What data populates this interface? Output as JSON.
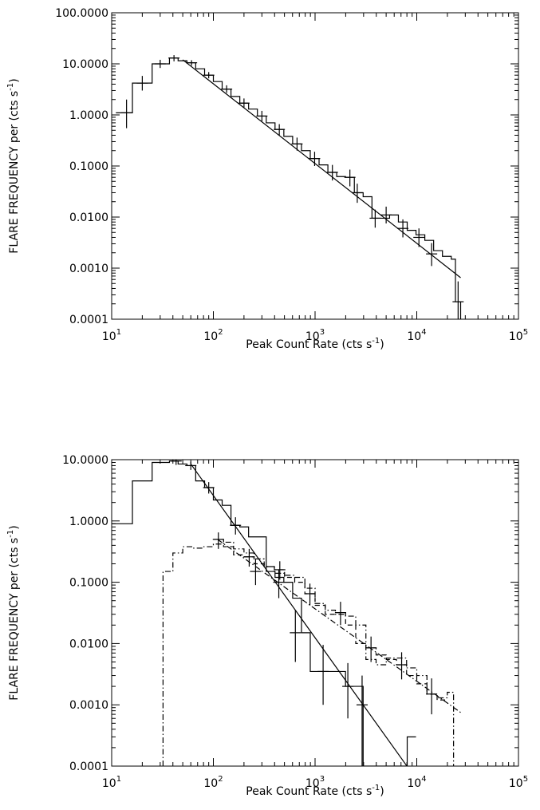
{
  "chart_data": [
    {
      "type": "line",
      "xlabel": "Peak Count Rate (cts s",
      "xlabel_exp": "-1",
      "xlabel_close": ")",
      "ylabel": "FLARE FREQUENCY per (cts s",
      "ylabel_exp": "-1",
      "ylabel_close": ")",
      "xscale": "log",
      "yscale": "log",
      "xlim": [
        10,
        100000
      ],
      "ylim": [
        0.0001,
        100
      ],
      "xticks": [
        {
          "base": "10",
          "exp": "1",
          "value": 10
        },
        {
          "base": "10",
          "exp": "2",
          "value": 100
        },
        {
          "base": "10",
          "exp": "3",
          "value": 1000
        },
        {
          "base": "10",
          "exp": "4",
          "value": 10000
        },
        {
          "base": "10",
          "exp": "5",
          "value": 100000
        }
      ],
      "yticks": [
        {
          "label": "0.0001",
          "value": 0.0001
        },
        {
          "label": "0.0010",
          "value": 0.001
        },
        {
          "label": "0.0100",
          "value": 0.01
        },
        {
          "label": "0.1000",
          "value": 0.1
        },
        {
          "label": "1.0000",
          "value": 1
        },
        {
          "label": "10.0000",
          "value": 10
        },
        {
          "label": "100.0000",
          "value": 100
        }
      ],
      "series": [
        {
          "style": "solid",
          "kind": "histogram",
          "edges": [
            11,
            13,
            16,
            20,
            25,
            30,
            37,
            45,
            55,
            67,
            82,
            100,
            122,
            149,
            182,
            222,
            271,
            331,
            404,
            493,
            602,
            735,
            897,
            1095,
            1337,
            1632,
            1993,
            2433,
            2970,
            3626,
            4426,
            5404,
            6597,
            8053,
            9831,
            12002,
            14652,
            17888,
            21837,
            24000,
            27000
          ],
          "values": [
            1.1,
            1.1,
            4.2,
            4.2,
            10.0,
            10.0,
            13.0,
            11.5,
            10.5,
            8.0,
            6.0,
            4.5,
            3.2,
            2.3,
            1.7,
            1.3,
            0.95,
            0.7,
            0.52,
            0.38,
            0.27,
            0.2,
            0.14,
            0.105,
            0.075,
            0.062,
            0.06,
            0.03,
            0.025,
            0.0095,
            0.0095,
            0.011,
            0.008,
            0.0055,
            0.0045,
            0.0035,
            0.0022,
            0.0017,
            0.0015,
            0.00022
          ],
          "errors": [
            {
              "x": 14,
              "y": 1.1,
              "lo": 0.55,
              "hi": 2.0
            },
            {
              "x": 20,
              "y": 4.2,
              "lo": 3.0,
              "hi": 5.8
            },
            {
              "x": 30,
              "y": 10.0,
              "lo": 8.3,
              "hi": 12.0
            },
            {
              "x": 41,
              "y": 13.0,
              "lo": 11.2,
              "hi": 14.8
            },
            {
              "x": 61,
              "y": 10.5,
              "lo": 9.2,
              "hi": 11.8
            },
            {
              "x": 90,
              "y": 6.0,
              "lo": 5.2,
              "hi": 6.9
            },
            {
              "x": 135,
              "y": 3.2,
              "lo": 2.7,
              "hi": 3.8
            },
            {
              "x": 200,
              "y": 1.7,
              "lo": 1.4,
              "hi": 2.1
            },
            {
              "x": 300,
              "y": 0.95,
              "lo": 0.75,
              "hi": 1.2
            },
            {
              "x": 445,
              "y": 0.52,
              "lo": 0.4,
              "hi": 0.66
            },
            {
              "x": 665,
              "y": 0.27,
              "lo": 0.2,
              "hi": 0.36
            },
            {
              "x": 990,
              "y": 0.14,
              "lo": 0.1,
              "hi": 0.19
            },
            {
              "x": 1480,
              "y": 0.075,
              "lo": 0.052,
              "hi": 0.105
            },
            {
              "x": 2200,
              "y": 0.06,
              "lo": 0.04,
              "hi": 0.085
            },
            {
              "x": 2600,
              "y": 0.03,
              "lo": 0.019,
              "hi": 0.045
            },
            {
              "x": 3900,
              "y": 0.0095,
              "lo": 0.0062,
              "hi": 0.014
            },
            {
              "x": 5000,
              "y": 0.011,
              "lo": 0.0075,
              "hi": 0.016
            },
            {
              "x": 7300,
              "y": 0.006,
              "lo": 0.004,
              "hi": 0.009
            },
            {
              "x": 10500,
              "y": 0.004,
              "lo": 0.0026,
              "hi": 0.006
            },
            {
              "x": 14000,
              "y": 0.0019,
              "lo": 0.0011,
              "hi": 0.0031
            },
            {
              "x": 25500,
              "y": 0.00022,
              "lo": 0.0001,
              "hi": 0.00055
            }
          ]
        },
        {
          "style": "solid",
          "kind": "fit-line",
          "x": [
            50,
            27000
          ],
          "y": [
            12.0,
            0.00065
          ]
        }
      ]
    },
    {
      "type": "line",
      "xlabel": "Peak Count Rate (cts s",
      "xlabel_exp": "-1",
      "xlabel_close": ")",
      "ylabel": "FLARE FREQUENCY per (cts s",
      "ylabel_exp": "-1",
      "ylabel_close": ")",
      "xscale": "log",
      "yscale": "log",
      "xlim": [
        10,
        100000
      ],
      "ylim": [
        0.0001,
        10
      ],
      "xticks": [
        {
          "base": "10",
          "exp": "1",
          "value": 10
        },
        {
          "base": "10",
          "exp": "2",
          "value": 100
        },
        {
          "base": "10",
          "exp": "3",
          "value": 1000
        },
        {
          "base": "10",
          "exp": "4",
          "value": 10000
        },
        {
          "base": "10",
          "exp": "5",
          "value": 100000
        }
      ],
      "yticks": [
        {
          "label": "0.0001",
          "value": 0.0001
        },
        {
          "label": "0.0010",
          "value": 0.001
        },
        {
          "label": "0.0100",
          "value": 0.01
        },
        {
          "label": "0.1000",
          "value": 0.1
        },
        {
          "label": "1.0000",
          "value": 1
        },
        {
          "label": "10.0000",
          "value": 10
        }
      ],
      "series": [
        {
          "style": "solid",
          "kind": "histogram",
          "edges": [
            10,
            13,
            16,
            20,
            25,
            30,
            37,
            45,
            55,
            67,
            82,
            100,
            122,
            149,
            182,
            222,
            271,
            331,
            404,
            493,
            602,
            735,
            897,
            1095,
            1337,
            1632,
            1993,
            2433,
            2970,
            3626,
            4426,
            5404,
            6597,
            8053,
            9831
          ],
          "values": [
            0.9,
            0.9,
            4.5,
            4.5,
            9.0,
            9.0,
            9.5,
            8.5,
            8.0,
            4.5,
            3.5,
            2.2,
            1.8,
            0.85,
            0.8,
            0.55,
            0.55,
            0.15,
            0.12,
            0.1,
            0.055,
            0.015,
            0.0035,
            0.0035,
            0.0035,
            0.0035,
            0.002,
            0.002,
            0.0001,
            0.0001,
            0.0001,
            0.0001,
            0.0001,
            0.0003
          ],
          "errors": [
            {
              "x": 43,
              "y": 9.5,
              "lo": 8.2,
              "hi": 10.8
            },
            {
              "x": 60,
              "y": 8.0,
              "lo": 6.8,
              "hi": 9.3
            },
            {
              "x": 90,
              "y": 3.5,
              "lo": 2.8,
              "hi": 4.3
            },
            {
              "x": 165,
              "y": 0.85,
              "lo": 0.6,
              "hi": 1.15
            },
            {
              "x": 260,
              "y": 0.15,
              "lo": 0.09,
              "hi": 0.24
            },
            {
              "x": 440,
              "y": 0.1,
              "lo": 0.055,
              "hi": 0.16
            },
            {
              "x": 640,
              "y": 0.015,
              "lo": 0.005,
              "hi": 0.035
            },
            {
              "x": 1200,
              "y": 0.0035,
              "lo": 0.001,
              "hi": 0.0095
            },
            {
              "x": 2100,
              "y": 0.002,
              "lo": 0.0006,
              "hi": 0.0048
            },
            {
              "x": 2900,
              "y": 0.001,
              "lo": 0.0001,
              "hi": 0.003
            }
          ]
        },
        {
          "style": "solid",
          "kind": "fit-line",
          "x": [
            60,
            8000
          ],
          "y": [
            8.5,
            0.0001
          ]
        },
        {
          "style": "dashdot",
          "kind": "histogram",
          "edges": [
            32,
            40,
            50,
            63,
            79,
            100,
            126,
            158,
            200,
            251,
            316,
            398,
            501,
            631,
            794,
            1000,
            1259,
            1585,
            1995,
            2512,
            3162,
            3981,
            5012,
            6310,
            7943,
            10000,
            12589,
            15849,
            19953,
            23000
          ],
          "values": [
            0.15,
            0.3,
            0.38,
            0.36,
            0.38,
            0.42,
            0.45,
            0.35,
            0.3,
            0.24,
            0.18,
            0.14,
            0.13,
            0.12,
            0.08,
            0.045,
            0.035,
            0.03,
            0.028,
            0.02,
            0.0055,
            0.0045,
            0.0058,
            0.0058,
            0.004,
            0.003,
            0.0015,
            0.0013,
            0.0016
          ],
          "drop_to_min_at_ends": true
        },
        {
          "style": "dashed",
          "kind": "histogram",
          "edges": [
            100,
            126,
            158,
            200,
            251,
            316,
            398,
            501,
            631,
            794,
            1000,
            1259,
            1585,
            1995,
            2512,
            3162,
            3981,
            5012,
            6310,
            7943,
            10000,
            12589,
            15849,
            19953
          ],
          "values": [
            0.5,
            0.38,
            0.28,
            0.26,
            0.2,
            0.18,
            0.16,
            0.12,
            0.1,
            0.065,
            0.042,
            0.03,
            0.032,
            0.02,
            0.01,
            0.0085,
            0.0065,
            0.0055,
            0.0045,
            0.003,
            0.0022,
            0.0015,
            0.0012
          ],
          "errors": [
            {
              "x": 112,
              "y": 0.5,
              "lo": 0.35,
              "hi": 0.65
            },
            {
              "x": 225,
              "y": 0.26,
              "lo": 0.18,
              "hi": 0.35
            },
            {
              "x": 450,
              "y": 0.16,
              "lo": 0.11,
              "hi": 0.22
            },
            {
              "x": 890,
              "y": 0.065,
              "lo": 0.042,
              "hi": 0.095
            },
            {
              "x": 1780,
              "y": 0.032,
              "lo": 0.02,
              "hi": 0.048
            },
            {
              "x": 3550,
              "y": 0.0085,
              "lo": 0.005,
              "hi": 0.013
            },
            {
              "x": 7100,
              "y": 0.0045,
              "lo": 0.0026,
              "hi": 0.0072
            },
            {
              "x": 14000,
              "y": 0.0015,
              "lo": 0.0007,
              "hi": 0.0027
            }
          ]
        },
        {
          "style": "dashdot",
          "kind": "fit-line",
          "x": [
            110,
            27000
          ],
          "y": [
            0.5,
            0.00075
          ]
        }
      ]
    }
  ]
}
